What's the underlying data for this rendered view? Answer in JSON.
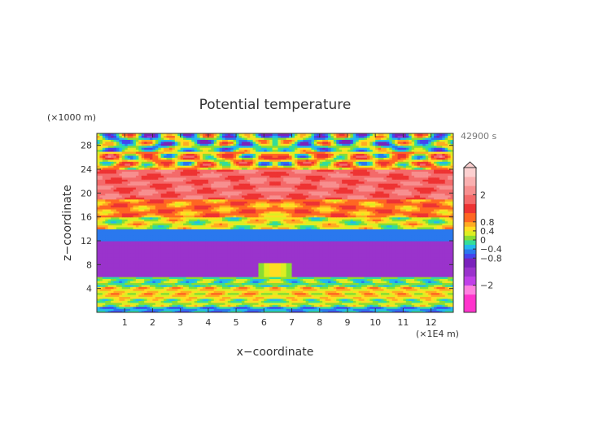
{
  "chart_data": {
    "type": "heatmap",
    "title": "Potential temperature",
    "time_label": "42900 s",
    "xlabel": "x−coordinate",
    "ylabel": "z−coordinate",
    "x_unit": "(×1E4 m)",
    "y_unit": "(×1000 m)",
    "xlim": [
      0,
      12.8
    ],
    "ylim": [
      0,
      30
    ],
    "x_ticks": [
      1,
      2,
      3,
      4,
      5,
      6,
      7,
      8,
      9,
      10,
      11,
      12
    ],
    "x_tick_labels": [
      "1",
      "2",
      "3",
      "4",
      "5",
      "6",
      "7",
      "8",
      "9",
      "10",
      "11",
      "12"
    ],
    "y_ticks": [
      4,
      8,
      12,
      16,
      20,
      24,
      28
    ],
    "y_tick_labels": [
      "4",
      "8",
      "12",
      "16",
      "20",
      "24",
      "28"
    ],
    "colorbar": {
      "levels": [
        -3.2,
        -2.4,
        -2.0,
        -1.6,
        -1.2,
        -0.8,
        -0.6,
        -0.4,
        -0.2,
        0,
        0.2,
        0.4,
        0.6,
        0.8,
        1.2,
        1.6,
        2.0,
        2.4,
        2.8,
        3.2
      ],
      "colors": [
        "#ff33cc",
        "#ff80e0",
        "#c040e8",
        "#9a33cc",
        "#7a22bb",
        "#4444ee",
        "#2a78ee",
        "#22b8ee",
        "#33dd99",
        "#88dd33",
        "#ddee22",
        "#ffdd22",
        "#ffaa22",
        "#ff6622",
        "#ee3333",
        "#f46a6a",
        "#f78f8f",
        "#fab0b0",
        "#fcd0d0"
      ],
      "tick_values": [
        2,
        0.8,
        0.4,
        0,
        -0.4,
        -0.8,
        -2
      ],
      "tick_labels": [
        "2",
        "0.8",
        "0.4",
        "0",
        "−0.4",
        "−0.8",
        "−2"
      ]
    },
    "field_layers": [
      {
        "z_range": [
          0,
          1
        ],
        "value": -0.4
      },
      {
        "z_range": [
          1,
          2.5
        ],
        "value": 0.2
      },
      {
        "z_range": [
          2.5,
          4.5
        ],
        "value": 0.5
      },
      {
        "z_range": [
          4.5,
          6
        ],
        "value": 0.0
      },
      {
        "z_range": [
          6,
          12
        ],
        "value": -1.4
      },
      {
        "z_range": [
          12,
          14
        ],
        "value": -0.6
      },
      {
        "z_range": [
          14,
          16
        ],
        "value": 0.3
      },
      {
        "z_range": [
          16,
          19
        ],
        "value": 0.9
      },
      {
        "z_range": [
          19,
          24
        ],
        "value": 1.8
      },
      {
        "z_range": [
          24,
          27
        ],
        "value": 0.6
      },
      {
        "z_range": [
          27,
          30
        ],
        "value": 0.0
      }
    ]
  }
}
